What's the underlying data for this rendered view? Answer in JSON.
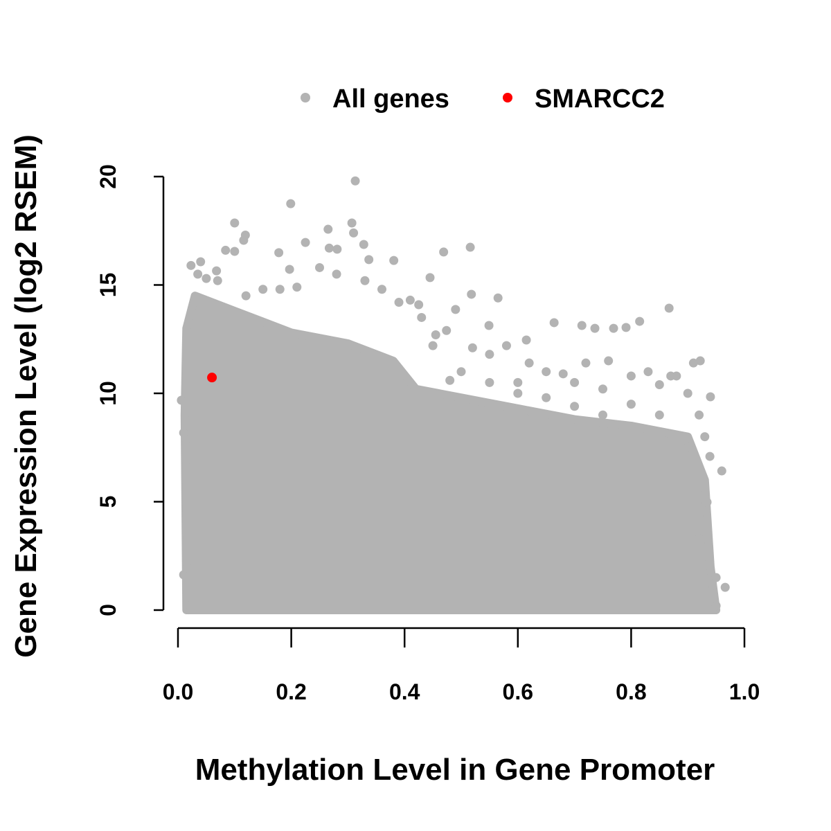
{
  "chart_data": {
    "type": "scatter",
    "title": "",
    "xlabel": "Methylation Level in Gene Promoter",
    "ylabel": "Gene Expression Level (log2 RSEM)",
    "xlim": [
      0,
      1
    ],
    "ylim": [
      0,
      20
    ],
    "xticks": [
      "0.0",
      "0.2",
      "0.4",
      "0.6",
      "0.8",
      "1.0"
    ],
    "xtick_values": [
      0,
      0.2,
      0.4,
      0.6,
      0.8,
      1.0
    ],
    "yticks": [
      "0",
      "5",
      "10",
      "15",
      "20"
    ],
    "ytick_values": [
      0,
      5,
      10,
      15,
      20
    ],
    "grid": false,
    "legend": {
      "placement": "top-center",
      "entries": [
        {
          "label": "All genes",
          "color": "#b3b3b3"
        },
        {
          "label": "SMARCC2",
          "color": "#ff0000"
        }
      ]
    },
    "series": [
      {
        "name": "All genes",
        "color": "#b3b3b3",
        "dense_region_outline": [
          [
            0.015,
            0
          ],
          [
            0.012,
            9
          ],
          [
            0.015,
            13
          ],
          [
            0.03,
            14.5
          ],
          [
            0.1,
            13.8
          ],
          [
            0.2,
            12.8
          ],
          [
            0.3,
            12.3
          ],
          [
            0.38,
            11.5
          ],
          [
            0.42,
            10.2
          ],
          [
            0.5,
            9.8
          ],
          [
            0.6,
            9.3
          ],
          [
            0.7,
            8.8
          ],
          [
            0.8,
            8.5
          ],
          [
            0.9,
            8
          ],
          [
            0.93,
            6
          ],
          [
            0.94,
            2
          ],
          [
            0.95,
            0
          ]
        ],
        "points": [
          [
            0.313,
            19.8
          ],
          [
            0.199,
            18.75
          ],
          [
            0.1,
            17.86
          ],
          [
            0.119,
            17.3
          ],
          [
            0.116,
            17.06
          ],
          [
            0.265,
            17.57
          ],
          [
            0.307,
            17.86
          ],
          [
            0.31,
            17.4
          ],
          [
            0.281,
            16.65
          ],
          [
            0.267,
            16.7
          ],
          [
            0.225,
            16.96
          ],
          [
            0.328,
            16.87
          ],
          [
            0.337,
            16.17
          ],
          [
            0.381,
            16.13
          ],
          [
            0.469,
            16.52
          ],
          [
            0.516,
            16.74
          ],
          [
            0.178,
            16.49
          ],
          [
            0.084,
            16.6
          ],
          [
            0.1,
            16.55
          ],
          [
            0.023,
            15.9
          ],
          [
            0.04,
            16.07
          ],
          [
            0.068,
            15.65
          ],
          [
            0.197,
            15.72
          ],
          [
            0.445,
            15.34
          ],
          [
            0.565,
            14.4
          ],
          [
            0.518,
            14.57
          ],
          [
            0.425,
            14.09
          ],
          [
            0.49,
            13.87
          ],
          [
            0.867,
            13.93
          ],
          [
            0.815,
            13.32
          ],
          [
            0.791,
            13.04
          ],
          [
            0.769,
            13.0
          ],
          [
            0.736,
            13.0
          ],
          [
            0.664,
            13.26
          ],
          [
            0.713,
            13.13
          ],
          [
            0.474,
            12.9
          ],
          [
            0.455,
            12.7
          ],
          [
            0.615,
            12.46
          ],
          [
            0.549,
            13.13
          ],
          [
            0.922,
            11.5
          ],
          [
            0.94,
            9.84
          ],
          [
            0.96,
            6.42
          ],
          [
            0.966,
            1.05
          ],
          [
            0.939,
            7.09
          ],
          [
            0.934,
            4.98
          ],
          [
            0.016,
            0.6
          ],
          [
            0.01,
            1.63
          ],
          [
            0.017,
            1.95
          ],
          [
            0.006,
            9.68
          ],
          [
            0.01,
            8.18
          ],
          [
            0.55,
            11.8
          ],
          [
            0.6,
            10.5
          ],
          [
            0.65,
            11
          ],
          [
            0.7,
            10.5
          ],
          [
            0.75,
            10.2
          ],
          [
            0.8,
            10.8
          ],
          [
            0.85,
            10.4
          ],
          [
            0.9,
            10
          ],
          [
            0.88,
            10.8
          ],
          [
            0.92,
            9
          ],
          [
            0.93,
            8
          ],
          [
            0.9,
            7.5
          ],
          [
            0.85,
            9
          ],
          [
            0.8,
            9.5
          ],
          [
            0.75,
            9
          ],
          [
            0.7,
            9.4
          ],
          [
            0.65,
            9.8
          ],
          [
            0.6,
            10
          ],
          [
            0.55,
            10.5
          ],
          [
            0.5,
            11
          ],
          [
            0.48,
            10.6
          ],
          [
            0.52,
            12.1
          ],
          [
            0.58,
            12.2
          ],
          [
            0.62,
            11.4
          ],
          [
            0.68,
            10.9
          ],
          [
            0.72,
            11.4
          ],
          [
            0.76,
            11.5
          ],
          [
            0.83,
            11.0
          ],
          [
            0.87,
            10.8
          ],
          [
            0.91,
            11.4
          ],
          [
            0.45,
            12.2
          ],
          [
            0.43,
            13.5
          ],
          [
            0.41,
            14.3
          ],
          [
            0.39,
            14.2
          ],
          [
            0.36,
            14.8
          ],
          [
            0.33,
            15.2
          ],
          [
            0.28,
            15.5
          ],
          [
            0.25,
            15.8
          ],
          [
            0.21,
            14.9
          ],
          [
            0.18,
            14.8
          ],
          [
            0.15,
            14.8
          ],
          [
            0.12,
            14.5
          ],
          [
            0.07,
            15.2
          ],
          [
            0.05,
            15.3
          ],
          [
            0.035,
            15.5
          ],
          [
            0.95,
            0.2
          ],
          [
            0.94,
            0.8
          ],
          [
            0.93,
            2.5
          ],
          [
            0.92,
            3.3
          ],
          [
            0.95,
            1.5
          ]
        ]
      },
      {
        "name": "SMARCC2",
        "color": "#ff0000",
        "points": [
          [
            0.06,
            10.73
          ]
        ]
      }
    ]
  }
}
